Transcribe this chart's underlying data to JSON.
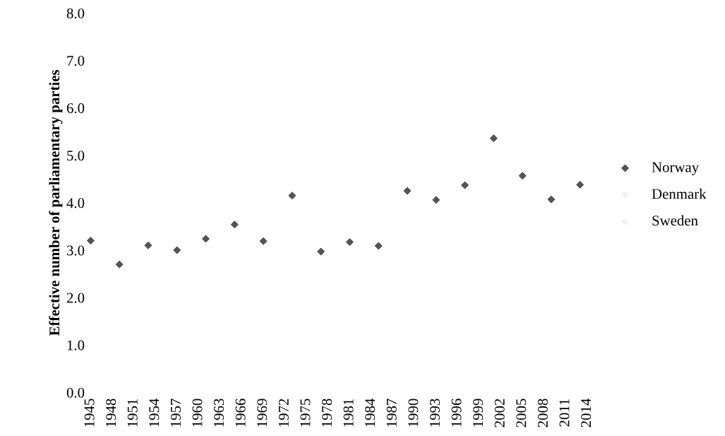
{
  "chart_data": {
    "type": "scatter",
    "ylabel": "Effective number of parliamentary parties",
    "x": [
      1945,
      1949,
      1953,
      1957,
      1961,
      1965,
      1969,
      1973,
      1977,
      1981,
      1985,
      1989,
      1993,
      1997,
      2001,
      2005,
      2009,
      2013
    ],
    "series": [
      {
        "name": "Norway",
        "color": "#555555",
        "values": [
          3.2,
          2.7,
          3.1,
          3.0,
          3.24,
          3.54,
          3.19,
          4.15,
          2.97,
          3.17,
          3.09,
          4.25,
          4.06,
          4.37,
          5.36,
          4.57,
          4.07,
          4.38
        ]
      },
      {
        "name": "Denmark",
        "color": "#f2f2f2",
        "values": [
          null,
          null,
          null,
          null,
          null,
          null,
          null,
          null,
          null,
          null,
          null,
          null,
          null,
          null,
          null,
          null,
          null,
          null
        ]
      },
      {
        "name": "Sweden",
        "color": "#f2f2f2",
        "values": [
          null,
          null,
          null,
          null,
          null,
          null,
          null,
          null,
          null,
          null,
          null,
          null,
          null,
          null,
          null,
          null,
          null,
          null
        ]
      }
    ],
    "xlim": [
      1945,
      2014
    ],
    "xticks": [
      1945,
      1948,
      1951,
      1954,
      1957,
      1960,
      1963,
      1966,
      1969,
      1972,
      1975,
      1978,
      1981,
      1984,
      1987,
      1990,
      1993,
      1996,
      1999,
      2002,
      2005,
      2008,
      2011,
      2014
    ],
    "ylim": [
      0,
      8
    ],
    "yticks": [
      {
        "value": 0,
        "label": "0.0"
      },
      {
        "value": 1,
        "label": "1.0"
      },
      {
        "value": 2,
        "label": "2.0"
      },
      {
        "value": 3,
        "label": "3.0"
      },
      {
        "value": 4,
        "label": "4.0"
      },
      {
        "value": 5,
        "label": "5.0"
      },
      {
        "value": 6,
        "label": "6.0"
      },
      {
        "value": 7,
        "label": "7.0"
      },
      {
        "value": 8,
        "label": "8.0"
      }
    ],
    "marker": "diamond",
    "legend": "right",
    "grid": false
  }
}
